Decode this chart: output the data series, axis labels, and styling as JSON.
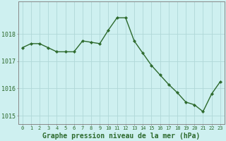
{
  "x": [
    0,
    1,
    2,
    3,
    4,
    5,
    6,
    7,
    8,
    9,
    10,
    11,
    12,
    13,
    14,
    15,
    16,
    17,
    18,
    19,
    20,
    21,
    22,
    23
  ],
  "y": [
    1017.5,
    1017.65,
    1017.65,
    1017.5,
    1017.35,
    1017.35,
    1017.35,
    1017.75,
    1017.7,
    1017.65,
    1018.15,
    1018.6,
    1018.6,
    1017.75,
    1017.3,
    1016.85,
    1016.5,
    1016.15,
    1015.85,
    1015.5,
    1015.4,
    1015.15,
    1015.8,
    1016.25
  ],
  "line_color": "#2d6a2d",
  "marker": "D",
  "marker_size": 2.2,
  "linewidth": 1.0,
  "bg_color": "#cef0f0",
  "grid_color": "#b0d8d8",
  "xlabel": "Graphe pression niveau de la mer (hPa)",
  "xlabel_fontsize": 7,
  "xlabel_color": "#2d6a2d",
  "yticks": [
    1015,
    1016,
    1017,
    1018
  ],
  "xticks": [
    0,
    1,
    2,
    3,
    4,
    5,
    6,
    7,
    8,
    9,
    10,
    11,
    12,
    13,
    14,
    15,
    16,
    17,
    18,
    19,
    20,
    21,
    22,
    23
  ],
  "ylim": [
    1014.7,
    1019.2
  ],
  "xlim": [
    -0.5,
    23.5
  ],
  "ytick_fontsize": 6,
  "xtick_fontsize": 5,
  "tick_color": "#2d6a2d",
  "spine_color": "#888888"
}
